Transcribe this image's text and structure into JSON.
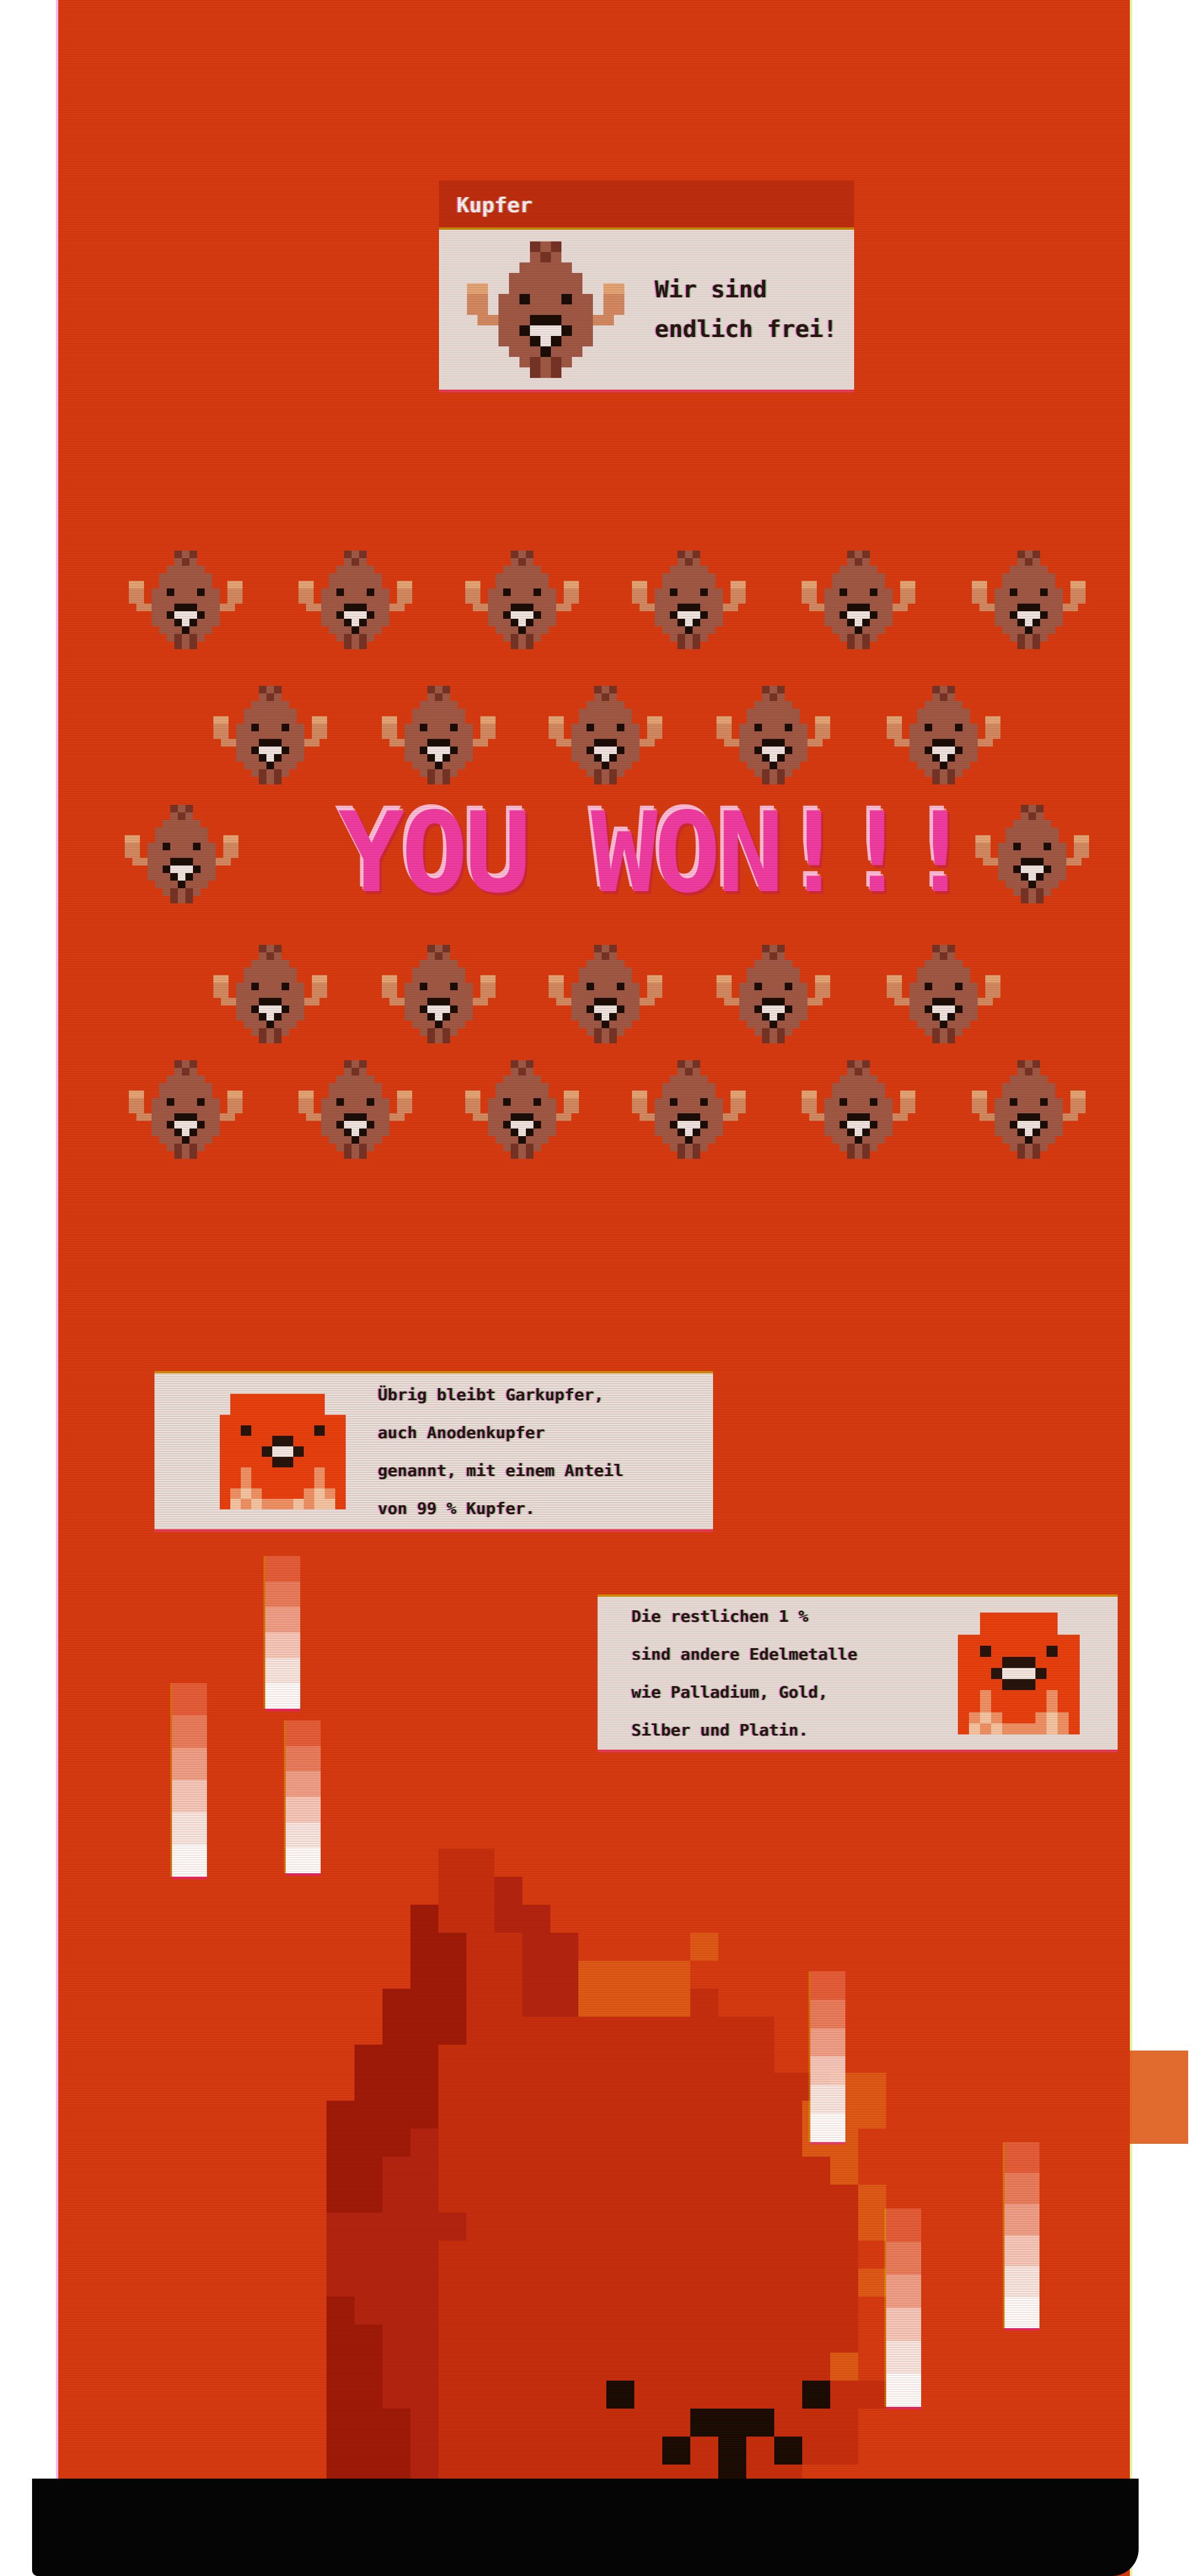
{
  "colors": {
    "screen_background": "#d73b10",
    "panel_background": "#efe9e5",
    "title_bar_red": "#c53110",
    "banner_pink": "#f03ca6",
    "copper_body_brown": "#9d5a47",
    "anode_copper_red": "#e8400f",
    "flame_dark_red": "#9e1a08",
    "black_bar": "#050505"
  },
  "dialog": {
    "title": "Kupfer",
    "lines": [
      "Wir sind",
      "endlich frei!"
    ]
  },
  "banner": {
    "text": "YOU WON!!!"
  },
  "celebration": {
    "sprite": "copper-buddy",
    "rows": [
      6,
      5,
      2,
      5,
      6
    ]
  },
  "infobox_garkupfer": {
    "lines": [
      "Übrig bleibt Garkupfer,",
      "auch Anodenkupfer",
      "genannt, mit einem Anteil",
      "von 99 % Kupfer."
    ]
  },
  "infobox_edelmetalle": {
    "lines": [
      "Die restlichen 1 %",
      "sind andere Edelmetalle",
      "wie Palladium, Gold,",
      "Silber und Platin."
    ]
  }
}
